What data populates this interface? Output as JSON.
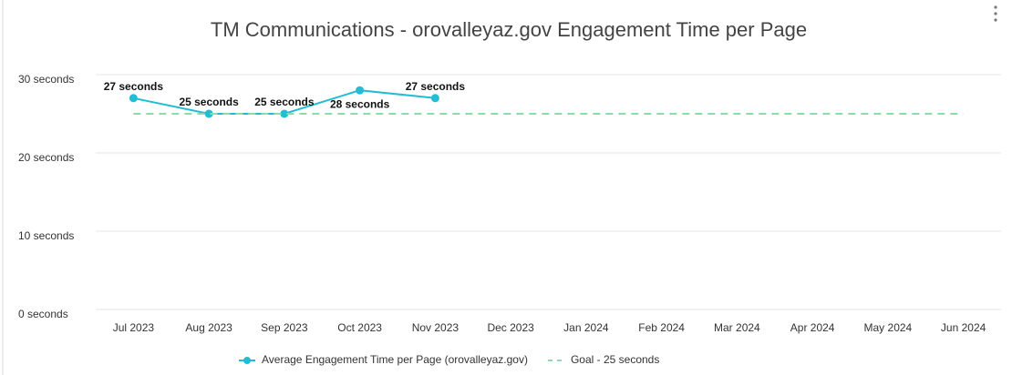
{
  "chart_data": {
    "type": "line",
    "title": "TM Communications - orovalleyaz.gov Engagement Time per Page",
    "categories": [
      "Jul 2023",
      "Aug 2023",
      "Sep 2023",
      "Oct 2023",
      "Nov 2023",
      "Dec 2023",
      "Jan 2024",
      "Feb 2024",
      "Mar 2024",
      "Apr 2024",
      "May 2024",
      "Jun 2024"
    ],
    "series": [
      {
        "name": "Average Engagement Time per Page (orovalleyaz.gov)",
        "color": "#22bcd4",
        "values": [
          27,
          25,
          25,
          28,
          27,
          null,
          null,
          null,
          null,
          null,
          null,
          null
        ],
        "value_labels": [
          "27 seconds",
          "25 seconds",
          "25 seconds",
          "28 seconds",
          "27 seconds",
          null,
          null,
          null,
          null,
          null,
          null,
          null
        ]
      },
      {
        "name": "Goal - 25 seconds",
        "color": "#8adcaa",
        "dashed": true,
        "values": [
          25,
          25,
          25,
          25,
          25,
          25,
          25,
          25,
          25,
          25,
          25,
          25
        ]
      }
    ],
    "ylim": [
      0,
      30
    ],
    "yticks": [
      {
        "value": 0,
        "label": "0 seconds"
      },
      {
        "value": 10,
        "label": "10 seconds"
      },
      {
        "value": 20,
        "label": "20 seconds"
      },
      {
        "value": 30,
        "label": "30 seconds"
      }
    ],
    "grid": true,
    "legend": "bottom"
  }
}
